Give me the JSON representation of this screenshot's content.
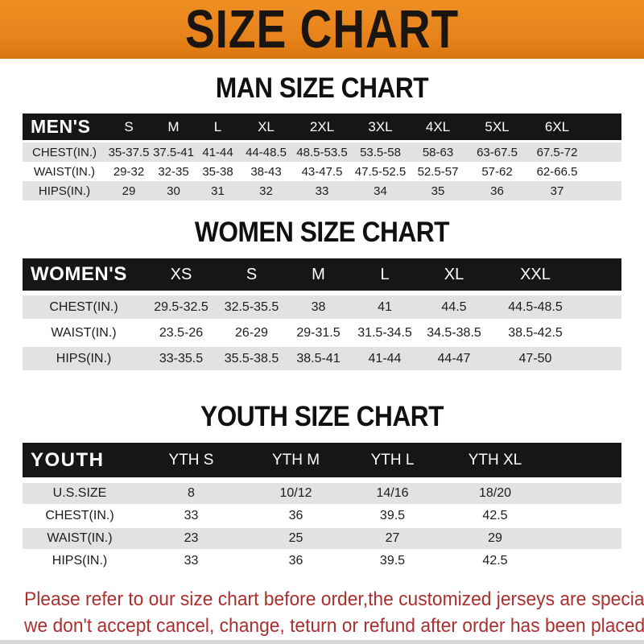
{
  "banner": {
    "title": "SIZE CHART"
  },
  "chart_data": [
    {
      "type": "table",
      "key": "men",
      "heading": "MAN SIZE CHART",
      "corner_label": "MEN'S",
      "columns": [
        "S",
        "M",
        "L",
        "XL",
        "2XL",
        "3XL",
        "4XL",
        "5XL",
        "6XL"
      ],
      "rows": [
        {
          "label": "CHEST(IN.)",
          "values": [
            "35-37.5",
            "37.5-41",
            "41-44",
            "44-48.5",
            "48.5-53.5",
            "53.5-58",
            "58-63",
            "63-67.5",
            "67.5-72"
          ]
        },
        {
          "label": "WAIST(IN.)",
          "values": [
            "29-32",
            "32-35",
            "35-38",
            "38-43",
            "43-47.5",
            "47.5-52.5",
            "52.5-57",
            "57-62",
            "62-66.5"
          ]
        },
        {
          "label": "HIPS(IN.)",
          "values": [
            "29",
            "30",
            "31",
            "32",
            "33",
            "34",
            "35",
            "36",
            "37"
          ]
        }
      ]
    },
    {
      "type": "table",
      "key": "women",
      "heading": "WOMEN SIZE CHART",
      "corner_label": "WOMEN'S",
      "columns": [
        "XS",
        "S",
        "M",
        "L",
        "XL",
        "XXL"
      ],
      "rows": [
        {
          "label": "CHEST(IN.)",
          "values": [
            "29.5-32.5",
            "32.5-35.5",
            "38",
            "41",
            "44.5",
            "44.5-48.5"
          ]
        },
        {
          "label": "WAIST(IN.)",
          "values": [
            "23.5-26",
            "26-29",
            "29-31.5",
            "31.5-34.5",
            "34.5-38.5",
            "38.5-42.5"
          ]
        },
        {
          "label": "HIPS(IN.)",
          "values": [
            "33-35.5",
            "35.5-38.5",
            "38.5-41",
            "41-44",
            "44-47",
            "47-50"
          ]
        }
      ]
    },
    {
      "type": "table",
      "key": "youth",
      "heading": "YOUTH SIZE CHART",
      "corner_label": "YOUTH",
      "columns": [
        "YTH S",
        "YTH M",
        "YTH L",
        "YTH XL"
      ],
      "rows": [
        {
          "label": "U.S.SIZE",
          "values": [
            "8",
            "10/12",
            "14/16",
            "18/20"
          ]
        },
        {
          "label": "CHEST(IN.)",
          "values": [
            "33",
            "36",
            "39.5",
            "42.5"
          ]
        },
        {
          "label": "WAIST(IN.)",
          "values": [
            "23",
            "25",
            "27",
            "29"
          ]
        },
        {
          "label": "HIPS(IN.)",
          "values": [
            "33",
            "36",
            "39.5",
            "42.5"
          ]
        }
      ]
    }
  ],
  "footer": {
    "lines": [
      "Please refer to our size chart before order,the customized jerseys are special products,",
      "we don't accept cancel, change, teturn or refund after order has been placed!"
    ]
  },
  "colors": {
    "banner_orange": "#E8831C",
    "banner_orange_dark": "#D9750E",
    "banner_orange_light": "#EE8E22",
    "header_bar_black": "#161616",
    "row_gray": "#E2E2E2",
    "row_white": "#FFFFFF",
    "footer_red": "#AC2F2F",
    "bottom_strip_gray": "#D8D8D8"
  }
}
